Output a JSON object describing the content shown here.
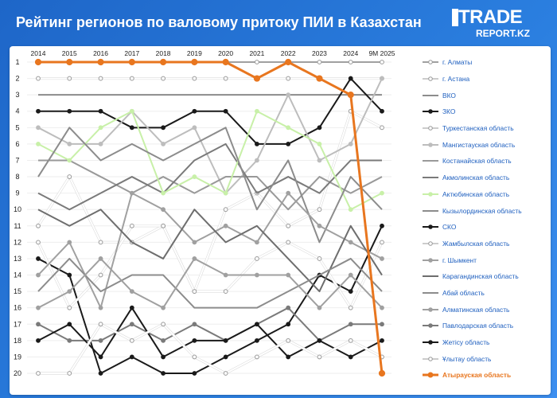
{
  "header": {
    "title": "Рейтинг регионов по валовому притоку ПИИ в Казахстан",
    "logo_line1": "TRADE",
    "logo_line2": "REPORT.KZ"
  },
  "colors": {
    "highlight": "#e8761f",
    "dark": "#1a1a1a",
    "white_line": "#ffffff",
    "light_green": "#c8f0a8",
    "greys": [
      "#7a7a7a",
      "#a0a0a0",
      "#bdbdbd",
      "#8c8c8c",
      "#cfcfcf",
      "#999999",
      "#6e6e6e"
    ]
  },
  "chart_data": {
    "type": "line",
    "title": "Рейтинг регионов по валовому притоку ПИИ в Казахстан",
    "x": [
      "2014",
      "2015",
      "2016",
      "2017",
      "2018",
      "2019",
      "2020",
      "2021",
      "2022",
      "2023",
      "2024",
      "9M 2025"
    ],
    "y_ticks": [
      "1",
      "2",
      "3",
      "4",
      "5",
      "6",
      "7",
      "8",
      "9",
      "10",
      "11",
      "12",
      "13",
      "14",
      "15",
      "16",
      "17",
      "18",
      "19",
      "20"
    ],
    "ylim": [
      1,
      20
    ],
    "y_inverted": true,
    "legend_position": "right",
    "series": [
      {
        "name": "г. Алматы",
        "color": "#a0a0a0",
        "marker": "circle-open",
        "values": [
          1,
          1,
          1,
          1,
          1,
          1,
          1,
          1,
          1,
          1,
          1,
          1
        ]
      },
      {
        "name": "г. Астана",
        "color": "#ffffff",
        "marker": "circle",
        "values": [
          2,
          2,
          2,
          2,
          2,
          2,
          2,
          2,
          2,
          2,
          2,
          2
        ]
      },
      {
        "name": "ВКО",
        "color": "#8c8c8c",
        "marker": "none",
        "values": [
          3,
          3,
          3,
          3,
          3,
          3,
          3,
          3,
          3,
          3,
          3,
          3
        ]
      },
      {
        "name": "ЗКО",
        "color": "#1a1a1a",
        "marker": "circle",
        "values": [
          4,
          4,
          4,
          5,
          5,
          4,
          4,
          6,
          6,
          5,
          2,
          4
        ]
      },
      {
        "name": "Туркестанская область",
        "color": "#ffffff",
        "marker": "circle",
        "values": [
          11,
          8,
          12,
          12,
          11,
          15,
          10,
          9,
          11,
          10,
          4,
          5
        ]
      },
      {
        "name": "Мангистауская область",
        "color": "#bdbdbd",
        "marker": "circle",
        "values": [
          5,
          6,
          6,
          4,
          6,
          5,
          9,
          7,
          3,
          7,
          6,
          2
        ]
      },
      {
        "name": "Костанайская область",
        "color": "#999999",
        "marker": "none",
        "values": [
          7,
          7,
          8,
          9,
          8,
          9,
          8,
          8,
          10,
          8,
          9,
          8
        ]
      },
      {
        "name": "Акмолинская область",
        "color": "#7a7a7a",
        "marker": "none",
        "values": [
          9,
          10,
          9,
          8,
          9,
          7,
          6,
          9,
          8,
          9,
          7,
          7
        ]
      },
      {
        "name": "Актюбинская область",
        "color": "#c8f0a8",
        "marker": "circle",
        "values": [
          6,
          7,
          5,
          4,
          9,
          8,
          9,
          4,
          5,
          6,
          10,
          9
        ]
      },
      {
        "name": "Кызылординская область",
        "color": "#8c8c8c",
        "marker": "none",
        "values": [
          8,
          5,
          7,
          6,
          7,
          6,
          5,
          10,
          7,
          12,
          8,
          10
        ]
      },
      {
        "name": "СКО",
        "color": "#1a1a1a",
        "marker": "circle",
        "values": [
          13,
          14,
          20,
          19,
          20,
          20,
          19,
          18,
          17,
          14,
          15,
          11
        ]
      },
      {
        "name": "Жамбылская область",
        "color": "#ffffff",
        "marker": "circle",
        "values": [
          12,
          16,
          14,
          11,
          11,
          15,
          15,
          13,
          12,
          13,
          16,
          12
        ]
      },
      {
        "name": "г. Шымкент",
        "color": "#a0a0a0",
        "marker": "circle",
        "values": [
          14,
          12,
          16,
          9,
          10,
          12,
          11,
          12,
          9,
          11,
          12,
          13
        ]
      },
      {
        "name": "Карагандинская область",
        "color": "#6e6e6e",
        "marker": "none",
        "values": [
          10,
          11,
          10,
          12,
          13,
          10,
          12,
          11,
          13,
          15,
          11,
          14
        ]
      },
      {
        "name": "Абай область",
        "color": "#8c8c8c",
        "marker": "none",
        "values": [
          15,
          13,
          15,
          14,
          14,
          16,
          16,
          16,
          15,
          14,
          13,
          15
        ]
      },
      {
        "name": "Алматинская область",
        "color": "#a0a0a0",
        "marker": "circle",
        "values": [
          16,
          15,
          13,
          15,
          16,
          13,
          14,
          14,
          14,
          16,
          14,
          16
        ]
      },
      {
        "name": "Павлодарская область",
        "color": "#7a7a7a",
        "marker": "circle",
        "values": [
          17,
          18,
          18,
          17,
          18,
          17,
          18,
          17,
          16,
          18,
          17,
          17
        ]
      },
      {
        "name": "Жетісу область",
        "color": "#1a1a1a",
        "marker": "circle",
        "values": [
          18,
          17,
          19,
          16,
          19,
          18,
          18,
          17,
          19,
          18,
          19,
          18
        ]
      },
      {
        "name": "Ұлытау область",
        "color": "#ffffff",
        "marker": "circle",
        "values": [
          20,
          20,
          17,
          18,
          17,
          19,
          20,
          19,
          18,
          19,
          18,
          19
        ]
      },
      {
        "name": "Атырауская область",
        "color": "#e8761f",
        "marker": "circle",
        "values": [
          1,
          1,
          1,
          1,
          1,
          1,
          1,
          2,
          1,
          2,
          3,
          20
        ]
      }
    ]
  }
}
